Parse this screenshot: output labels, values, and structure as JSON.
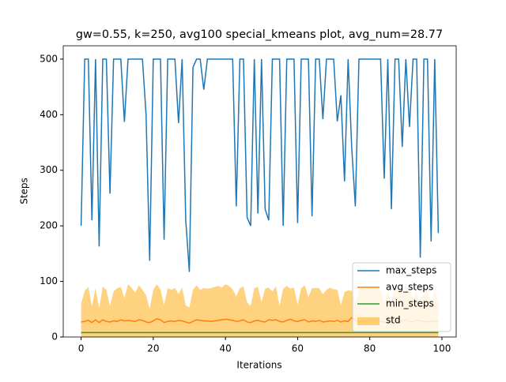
{
  "chart_data": {
    "type": "line",
    "title": "gw=0.55, k=250, avg100 special_kmeans plot, avg_num=28.77",
    "x_label": "Iterations",
    "y_label": "Steps",
    "x": [
      0,
      1,
      2,
      3,
      4,
      5,
      6,
      7,
      8,
      9,
      10,
      11,
      12,
      13,
      14,
      15,
      16,
      17,
      18,
      19,
      20,
      21,
      22,
      23,
      24,
      25,
      26,
      27,
      28,
      29,
      30,
      31,
      32,
      33,
      34,
      35,
      36,
      37,
      38,
      39,
      40,
      41,
      42,
      43,
      44,
      45,
      46,
      47,
      48,
      49,
      50,
      51,
      52,
      53,
      54,
      55,
      56,
      57,
      58,
      59,
      60,
      61,
      62,
      63,
      64,
      65,
      66,
      67,
      68,
      69,
      70,
      71,
      72,
      73,
      74,
      75,
      76,
      77,
      78,
      79,
      80,
      81,
      82,
      83,
      84,
      85,
      86,
      87,
      88,
      89,
      90,
      91,
      92,
      93,
      94,
      95,
      96,
      97,
      98,
      99
    ],
    "series": [
      {
        "name": "max_steps",
        "color": "#1f77b4",
        "values": [
          200,
          500,
          500,
          210,
          500,
          163,
          500,
          500,
          258,
          500,
          500,
          500,
          387,
          500,
          500,
          500,
          500,
          500,
          400,
          137,
          500,
          500,
          500,
          175,
          500,
          500,
          500,
          385,
          500,
          210,
          117,
          485,
          500,
          500,
          445,
          500,
          500,
          500,
          500,
          500,
          500,
          500,
          500,
          235,
          500,
          500,
          215,
          200,
          500,
          222,
          500,
          230,
          210,
          500,
          500,
          500,
          200,
          500,
          500,
          500,
          205,
          500,
          500,
          500,
          217,
          500,
          500,
          392,
          500,
          500,
          500,
          388,
          435,
          280,
          500,
          340,
          235,
          500,
          500,
          500,
          500,
          500,
          500,
          500,
          285,
          500,
          230,
          500,
          500,
          342,
          500,
          378,
          500,
          500,
          143,
          500,
          500,
          172,
          500,
          187
        ]
      },
      {
        "name": "avg_steps",
        "color": "#ff7f0e",
        "values": [
          27,
          28,
          30,
          26,
          31,
          26,
          31,
          28,
          27,
          29,
          28,
          31,
          29,
          30,
          29,
          28,
          31,
          30,
          27,
          26,
          29,
          33,
          31,
          26,
          28,
          29,
          28,
          30,
          29,
          27,
          25,
          28,
          31,
          30,
          29,
          29,
          28,
          29,
          30,
          31,
          32,
          31,
          30,
          28,
          29,
          31,
          27,
          26,
          29,
          30,
          28,
          27,
          31,
          30,
          31,
          28,
          27,
          30,
          32,
          29,
          28,
          30,
          31,
          27,
          29,
          28,
          30,
          27,
          28,
          29,
          28,
          30,
          27,
          29,
          28,
          35,
          30,
          27,
          29,
          28,
          30,
          31,
          29,
          28,
          27,
          26,
          29,
          30,
          28,
          29,
          31,
          28,
          27,
          30,
          29,
          28,
          27,
          29,
          28,
          27
        ]
      },
      {
        "name": "min_steps",
        "color": "#2ca02c",
        "values": [
          8,
          8,
          8,
          8,
          8,
          8,
          8,
          8,
          8,
          8,
          8,
          8,
          8,
          8,
          8,
          8,
          8,
          8,
          8,
          8,
          8,
          8,
          8,
          8,
          8,
          8,
          8,
          8,
          8,
          8,
          8,
          8,
          8,
          8,
          8,
          8,
          8,
          8,
          8,
          8,
          8,
          8,
          8,
          8,
          8,
          8,
          8,
          8,
          8,
          8,
          8,
          8,
          8,
          8,
          8,
          8,
          8,
          8,
          8,
          8,
          8,
          8,
          8,
          8,
          8,
          8,
          8,
          8,
          8,
          8,
          8,
          8,
          8,
          8,
          8,
          8,
          8,
          8,
          8,
          8,
          8,
          8,
          8,
          8,
          8,
          8,
          8,
          8,
          8,
          8,
          8,
          8,
          8,
          8,
          8,
          8,
          8,
          8,
          8,
          8
        ]
      },
      {
        "name": "std",
        "color": "#ffa500",
        "values": [
          33,
          55,
          60,
          29,
          57,
          26,
          60,
          57,
          28,
          53,
          60,
          59,
          41,
          65,
          59,
          52,
          62,
          55,
          48,
          24,
          56,
          62,
          54,
          32,
          60,
          56,
          60,
          48,
          60,
          30,
          28,
          57,
          62,
          55,
          59,
          58,
          60,
          61,
          62,
          58,
          63,
          61,
          56,
          45,
          59,
          60,
          35,
          30,
          59,
          60,
          35,
          60,
          58,
          52,
          60,
          28,
          60,
          62,
          55,
          60,
          30,
          58,
          62,
          45,
          59,
          60,
          58,
          50,
          57,
          60,
          58,
          55,
          30,
          52,
          56,
          48,
          30,
          58,
          61,
          60,
          60,
          58,
          60,
          57,
          33,
          58,
          30,
          62,
          60,
          50,
          58,
          59,
          43,
          55,
          28,
          57,
          60,
          30,
          58,
          32
        ]
      }
    ],
    "xlim": [
      -4.95,
      103.95
    ],
    "xticks": [
      0,
      20,
      40,
      60,
      80,
      100
    ],
    "ylim": [
      0,
      524
    ],
    "yticks": [
      0,
      100,
      200,
      300,
      400,
      500
    ],
    "legend": "lower right"
  }
}
